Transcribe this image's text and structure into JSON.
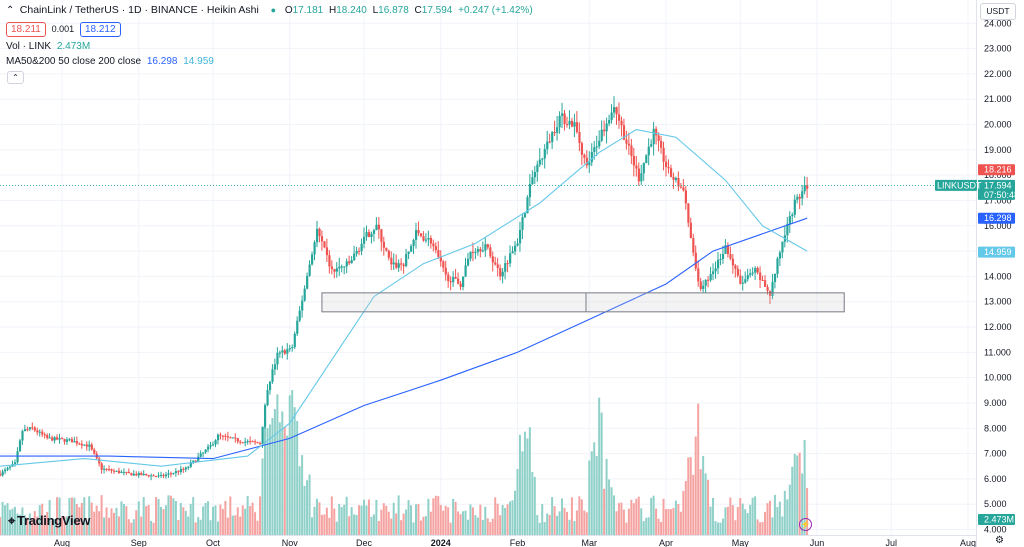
{
  "header": {
    "symbol": "ChainLink / TetherUS · 1D · BINANCE · Heikin Ashi",
    "o_label": "O",
    "o": "17.181",
    "h_label": "H",
    "h": "18.240",
    "l_label": "L",
    "l": "16.878",
    "c_label": "C",
    "c": "17.594",
    "change": "+0.247 (+1.42%)",
    "sell": "18.211",
    "spread": "0.001",
    "buy": "18.212",
    "vol_label": "Vol · LINK",
    "vol": "2.473M",
    "ma_label": "MA50&200 50 close 200 close",
    "ma50": "16.298",
    "ma200": "14.959",
    "currency": "USDT",
    "logo": "TradingView"
  },
  "colors": {
    "up": "#26a69a",
    "down": "#ef5350",
    "ma50": "#2962ff",
    "ma200": "#64c8e8",
    "vol_up": "#8fd0c8",
    "vol_down": "#f5a3a1"
  },
  "price_tags": [
    {
      "value": 18.216,
      "text": "18.216",
      "color": "#ef5350"
    },
    {
      "value": 17.594,
      "text": "17.594",
      "color": "#26a69a",
      "label": "LINKUSDT",
      "sub": "07:50:48"
    },
    {
      "value": 16.298,
      "text": "16.298",
      "color": "#2962ff"
    },
    {
      "value": 14.959,
      "text": "14.959",
      "color": "#64c8e8"
    }
  ],
  "vol_tag": "2.473M",
  "chart_data": {
    "type": "candlestick",
    "title": "ChainLink / TetherUS · 1D · BINANCE · Heikin Ashi",
    "y_ticks": [
      4.0,
      5.0,
      6.0,
      7.0,
      8.0,
      9.0,
      10.0,
      11.0,
      12.0,
      13.0,
      14.0,
      15.0,
      16.0,
      17.0,
      18.0,
      19.0,
      20.0,
      21.0,
      22.0,
      23.0,
      24.0
    ],
    "y_tick_labels": [
      "4.000",
      "5.000",
      "6.000",
      "7.000",
      "8.000",
      "9.000",
      "10.000",
      "11.000",
      "12.000",
      "13.000",
      "14.000",
      "15.000",
      "16.000",
      "17.000",
      "18.000",
      "19.000",
      "20.000",
      "21.000",
      "22.000",
      "23.000",
      "24.000"
    ],
    "ylim": [
      4.0,
      24.0
    ],
    "x_labels": [
      {
        "text": "Aug",
        "date": "2023-08-01"
      },
      {
        "text": "Sep",
        "date": "2023-09-01"
      },
      {
        "text": "Oct",
        "date": "2023-10-01"
      },
      {
        "text": "Nov",
        "date": "2023-11-01"
      },
      {
        "text": "Dec",
        "date": "2023-12-01"
      },
      {
        "text": "2024",
        "date": "2024-01-01"
      },
      {
        "text": "Feb",
        "date": "2024-02-01"
      },
      {
        "text": "Mar",
        "date": "2024-03-01"
      },
      {
        "text": "Apr",
        "date": "2024-04-01"
      },
      {
        "text": "May",
        "date": "2024-05-01"
      },
      {
        "text": "Jun",
        "date": "2024-06-01"
      },
      {
        "text": "Jul",
        "date": "2024-07-01"
      },
      {
        "text": "Aug",
        "date": "2024-08-01"
      }
    ],
    "price_path": [
      [
        "2023-07-07",
        6.2
      ],
      [
        "2023-07-13",
        6.6
      ],
      [
        "2023-07-16",
        7.9
      ],
      [
        "2023-07-20",
        8.0
      ],
      [
        "2023-07-26",
        7.6
      ],
      [
        "2023-08-05",
        7.5
      ],
      [
        "2023-08-12",
        7.3
      ],
      [
        "2023-08-17",
        6.4
      ],
      [
        "2023-08-28",
        6.2
      ],
      [
        "2023-09-10",
        6.1
      ],
      [
        "2023-09-20",
        6.4
      ],
      [
        "2023-09-30",
        7.3
      ],
      [
        "2023-10-03",
        7.7
      ],
      [
        "2023-10-12",
        7.5
      ],
      [
        "2023-10-20",
        7.4
      ],
      [
        "2023-10-23",
        9.6
      ],
      [
        "2023-10-27",
        10.9
      ],
      [
        "2023-11-02",
        11.2
      ],
      [
        "2023-11-09",
        14.5
      ],
      [
        "2023-11-12",
        15.8
      ],
      [
        "2023-11-18",
        14.2
      ],
      [
        "2023-11-25",
        14.5
      ],
      [
        "2023-12-02",
        15.6
      ],
      [
        "2023-12-06",
        16.0
      ],
      [
        "2023-12-12",
        14.4
      ],
      [
        "2023-12-17",
        14.5
      ],
      [
        "2023-12-22",
        15.7
      ],
      [
        "2023-12-28",
        15.4
      ],
      [
        "2024-01-03",
        14.0
      ],
      [
        "2024-01-09",
        13.7
      ],
      [
        "2024-01-13",
        15.0
      ],
      [
        "2024-01-19",
        15.2
      ],
      [
        "2024-01-25",
        14.1
      ],
      [
        "2024-02-01",
        15.4
      ],
      [
        "2024-02-07",
        17.9
      ],
      [
        "2024-02-13",
        19.2
      ],
      [
        "2024-02-18",
        20.3
      ],
      [
        "2024-02-24",
        20.0
      ],
      [
        "2024-02-29",
        18.3
      ],
      [
        "2024-03-05",
        19.5
      ],
      [
        "2024-03-11",
        20.8
      ],
      [
        "2024-03-17",
        19.0
      ],
      [
        "2024-03-21",
        17.9
      ],
      [
        "2024-03-27",
        19.7
      ],
      [
        "2024-04-02",
        18.1
      ],
      [
        "2024-04-08",
        17.4
      ],
      [
        "2024-04-12",
        14.8
      ],
      [
        "2024-04-15",
        13.4
      ],
      [
        "2024-04-21",
        14.4
      ],
      [
        "2024-04-25",
        15.2
      ],
      [
        "2024-05-01",
        13.7
      ],
      [
        "2024-05-07",
        14.2
      ],
      [
        "2024-05-13",
        13.3
      ],
      [
        "2024-05-18",
        15.4
      ],
      [
        "2024-05-23",
        16.9
      ],
      [
        "2024-05-28",
        17.6
      ]
    ],
    "ma_series": [
      {
        "name": "MA50",
        "last": 16.298,
        "points": [
          [
            "2023-07-07",
            6.9
          ],
          [
            "2023-08-20",
            6.9
          ],
          [
            "2023-10-01",
            6.8
          ],
          [
            "2023-11-01",
            7.6
          ],
          [
            "2023-12-01",
            8.9
          ],
          [
            "2024-01-01",
            9.9
          ],
          [
            "2024-02-01",
            11.0
          ],
          [
            "2024-03-01",
            12.3
          ],
          [
            "2024-04-01",
            13.7
          ],
          [
            "2024-04-20",
            15.0
          ],
          [
            "2024-05-28",
            16.3
          ]
        ]
      },
      {
        "name": "MA200",
        "last": 14.959,
        "points": [
          [
            "2023-07-07",
            6.5
          ],
          [
            "2023-08-10",
            6.8
          ],
          [
            "2023-09-10",
            6.5
          ],
          [
            "2023-10-15",
            6.9
          ],
          [
            "2023-11-01",
            8.2
          ],
          [
            "2023-11-20",
            11.0
          ],
          [
            "2023-12-05",
            13.2
          ],
          [
            "2023-12-25",
            14.5
          ],
          [
            "2024-01-15",
            15.3
          ],
          [
            "2024-02-10",
            16.9
          ],
          [
            "2024-03-05",
            18.9
          ],
          [
            "2024-03-20",
            19.8
          ],
          [
            "2024-04-05",
            19.5
          ],
          [
            "2024-04-25",
            17.8
          ],
          [
            "2024-05-10",
            16.0
          ],
          [
            "2024-05-28",
            15.0
          ]
        ]
      }
    ],
    "support_zone": {
      "from": "2023-11-14",
      "to": "2024-06-12",
      "low": 12.6,
      "high": 13.35
    },
    "volume": {
      "peak_dates": [
        "2023-10-25",
        "2023-11-02",
        "2024-02-04",
        "2024-03-05",
        "2024-04-13",
        "2024-05-24"
      ],
      "last": "2.473M"
    }
  }
}
